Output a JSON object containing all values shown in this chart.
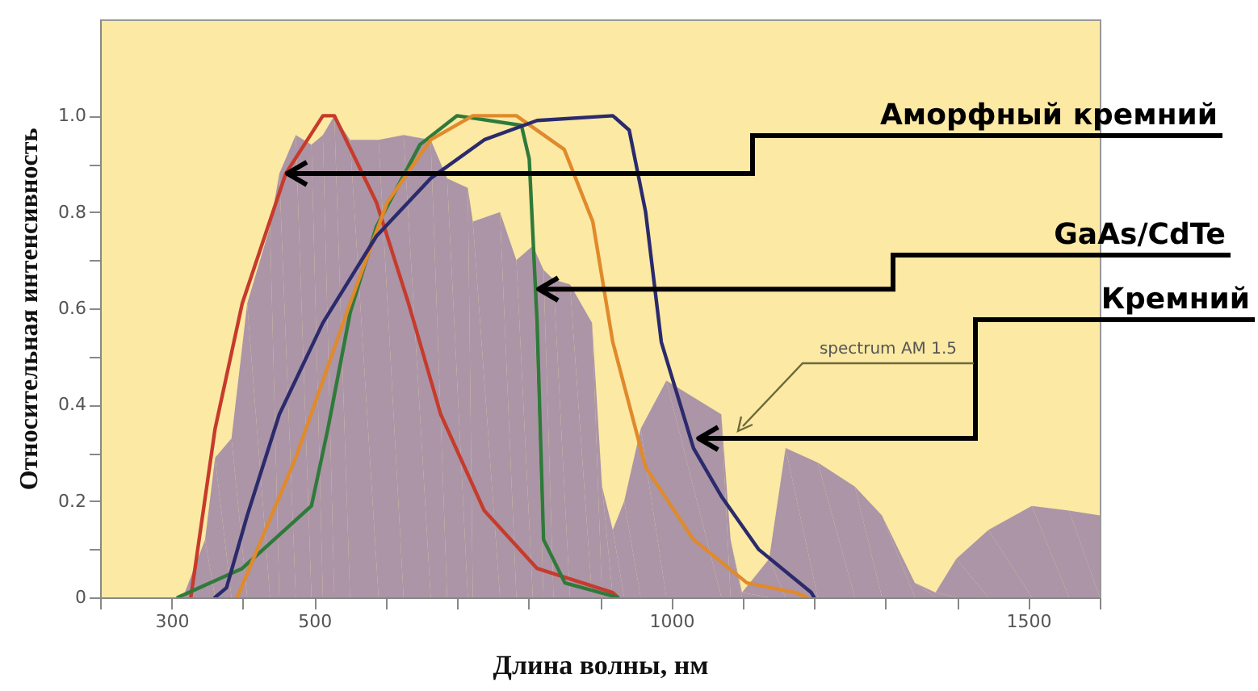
{
  "chart_data": {
    "type": "line",
    "xlabel": "Длина волны, нм",
    "ylabel": "Относительная интенсивность",
    "xlim": [
      200,
      1600
    ],
    "xticks": [
      {
        "value": 200,
        "label": null
      },
      300,
      {
        "value": 400,
        "label": null
      },
      500,
      {
        "value": 600,
        "label": null
      },
      {
        "value": 700,
        "label": null
      },
      {
        "value": 800,
        "label": null
      },
      {
        "value": 900,
        "label": null
      },
      1000,
      {
        "value": 1100,
        "label": null
      },
      {
        "value": 1200,
        "label": null
      },
      {
        "value": 1300,
        "label": null
      },
      {
        "value": 1400,
        "label": null
      },
      1500,
      {
        "value": 1600,
        "label": null
      }
    ],
    "ylim": [
      0,
      1.2
    ],
    "yticks": [
      0,
      {
        "value": 0.1,
        "label": null
      },
      0.2,
      {
        "value": 0.3,
        "label": null
      },
      0.4,
      {
        "value": 0.5,
        "label": null
      },
      0.6,
      {
        "value": 0.7,
        "label": null
      },
      0.8,
      {
        "value": 0.9,
        "label": null
      },
      {
        "value": 1,
        "label": "1.0"
      }
    ],
    "grid": false,
    "line_style": "solid",
    "series": [
      {
        "type": "area",
        "color": "#ab95a6",
        "x": [
          316,
          347,
          361,
          384,
          406,
          438,
          451,
          474,
          496,
          512,
          528,
          550,
          590,
          625,
          663,
          686,
          715,
          722,
          760,
          783,
          806,
          821,
          835,
          858,
          889,
          903,
          918,
          934,
          957,
          993,
          1070,
          1083,
          1099,
          1137,
          1160,
          1205,
          1257,
          1295,
          1341,
          1370,
          1399,
          1444,
          1505,
          1557,
          1600
        ],
        "values": [
          0,
          0.12,
          0.29,
          0.33,
          0.61,
          0.77,
          0.88,
          0.96,
          0.94,
          0.96,
          1.0,
          0.95,
          0.95,
          0.96,
          0.95,
          0.87,
          0.85,
          0.78,
          0.8,
          0.7,
          0.73,
          0.68,
          0.66,
          0.65,
          0.57,
          0.23,
          0.14,
          0.2,
          0.35,
          0.45,
          0.38,
          0.12,
          0.01,
          0.08,
          0.31,
          0.28,
          0.23,
          0.17,
          0.03,
          0.01,
          0.08,
          0.14,
          0.19,
          0.18,
          0.17
        ]
      },
      {
        "color": "#c63b2c",
        "x": [
          327,
          361,
          399,
          460,
          512,
          528,
          587,
          632,
          677,
          738,
          812,
          918,
          925
        ],
        "values": [
          0,
          0.35,
          0.61,
          0.88,
          1.0,
          1.0,
          0.82,
          0.61,
          0.38,
          0.18,
          0.06,
          0.01,
          0
        ]
      },
      {
        "color": "#2f7a3a",
        "x": [
          309,
          399,
          496,
          519,
          550,
          587,
          648,
          700,
          790,
          801,
          812,
          821,
          851,
          925
        ],
        "values": [
          0,
          0.06,
          0.19,
          0.35,
          0.59,
          0.77,
          0.94,
          1.0,
          0.98,
          0.91,
          0.57,
          0.12,
          0.03,
          0
        ]
      },
      {
        "color": "#e08a2c",
        "x": [
          392,
          474,
          550,
          602,
          663,
          722,
          783,
          850,
          890,
          918,
          964,
          1031,
          1106,
          1174,
          1190
        ],
        "values": [
          0,
          0.29,
          0.61,
          0.82,
          0.95,
          1.0,
          1.0,
          0.93,
          0.78,
          0.53,
          0.27,
          0.12,
          0.03,
          0.01,
          0
        ]
      },
      {
        "color": "#2b2a6c",
        "x": [
          361,
          377,
          406,
          451,
          512,
          587,
          663,
          738,
          812,
          918,
          941,
          964,
          986,
          1031,
          1070,
          1122,
          1196,
          1200
        ],
        "values": [
          0,
          0.02,
          0.17,
          0.38,
          0.57,
          0.75,
          0.87,
          0.95,
          0.99,
          1.0,
          0.97,
          0.8,
          0.53,
          0.31,
          0.21,
          0.1,
          0.01,
          0
        ]
      }
    ],
    "annotations": [
      {
        "text": "Аморфный кремний",
        "x": 460,
        "y": 0.88
      },
      {
        "text": "GaAs/CdTe",
        "x": 812,
        "y": 0.64
      },
      {
        "text": "Кремний",
        "x": 1036,
        "y": 0.33
      },
      "spectrum AM 1.5"
    ]
  }
}
